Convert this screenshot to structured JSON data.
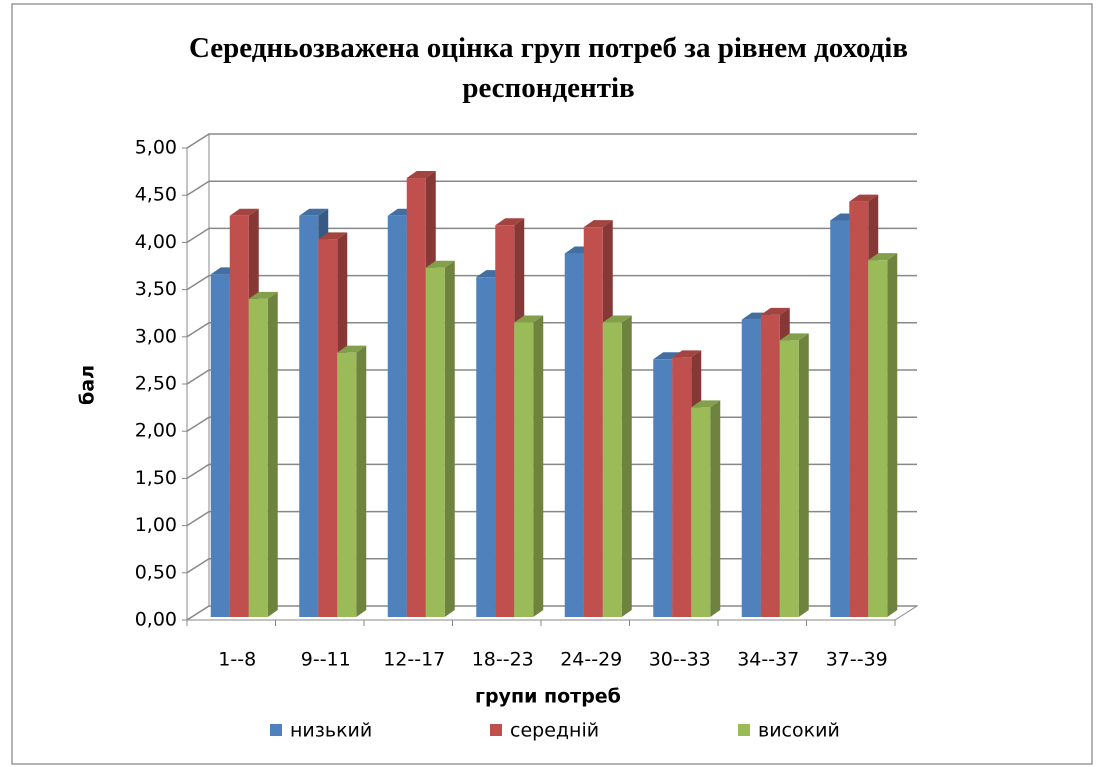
{
  "chart_data": {
    "type": "bar3d",
    "title": "Середньозважена оцінка груп потреб за рівнем доходів респондентів",
    "x_label": "групи потреб",
    "y_label": "бал",
    "categories": [
      "1--8",
      "9--11",
      "12--17",
      "18--23",
      "24--29",
      "30--33",
      "34--37",
      "37--39"
    ],
    "series": [
      {
        "name": "низький",
        "color": "#4f81bd",
        "values": [
          3.63,
          4.25,
          4.25,
          3.6,
          3.85,
          2.73,
          3.15,
          4.2
        ]
      },
      {
        "name": "середній",
        "color": "#c0504d",
        "values": [
          4.25,
          4.0,
          4.65,
          4.15,
          4.13,
          2.75,
          3.2,
          4.4
        ]
      },
      {
        "name": "високий",
        "color": "#9bbb59",
        "values": [
          3.37,
          2.8,
          3.7,
          3.12,
          3.12,
          2.22,
          2.93,
          3.78
        ]
      }
    ],
    "ylim": [
      0,
      5
    ],
    "yticks": [
      {
        "value": 0,
        "label": "0,00"
      },
      {
        "value": 0.5,
        "label": "0,50"
      },
      {
        "value": 1,
        "label": "1,00"
      },
      {
        "value": 1.5,
        "label": "1,50"
      },
      {
        "value": 2,
        "label": "2,00"
      },
      {
        "value": 2.5,
        "label": "2,50"
      },
      {
        "value": 3,
        "label": "3,00"
      },
      {
        "value": 3.5,
        "label": "3,50"
      },
      {
        "value": 4,
        "label": "4,00"
      },
      {
        "value": 4.5,
        "label": "4,50"
      },
      {
        "value": 5,
        "label": "5,00"
      }
    ],
    "grid": true,
    "legend": "bottom"
  }
}
